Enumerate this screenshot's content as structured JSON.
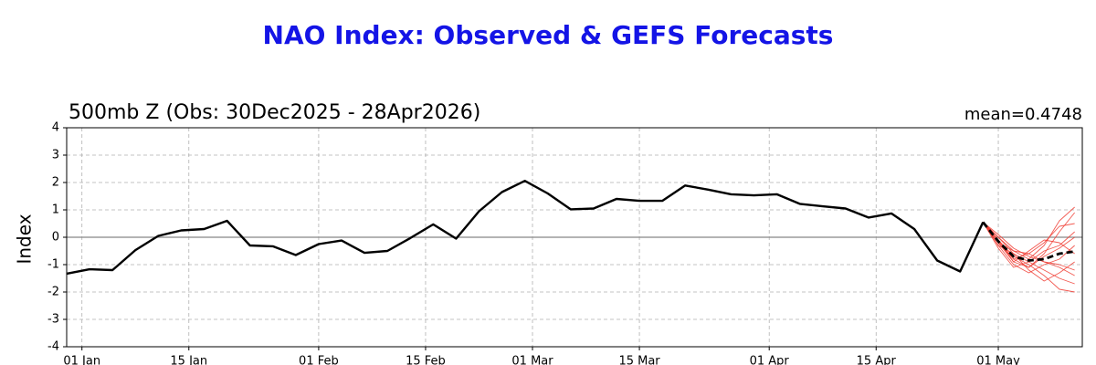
{
  "chart_data": {
    "type": "line",
    "title": "NAO Index: Observed & GEFS Forecasts",
    "subtitle": "500mb Z (Obs: 30Dec2025 - 28Apr2026)",
    "annotation": "mean=0.4748",
    "y_label": "Index",
    "xlim": [
      "30 Dec",
      "12 May"
    ],
    "xticks": [
      "01 Jan",
      "15 Jan",
      "01 Feb",
      "15 Feb",
      "01 Mar",
      "15 Mar",
      "01 Apr",
      "15 Apr",
      "01 May"
    ],
    "ylim": [
      -4,
      4
    ],
    "yticks": [
      -4,
      -3,
      -2,
      -1,
      0,
      1,
      2,
      3,
      4
    ],
    "grid": true,
    "zero_line": true,
    "series": [
      {
        "color": "#f03c32",
        "x": [
          "29 Apr",
          "01 May",
          "03 May",
          "05 May",
          "07 May",
          "09 May",
          "11 May"
        ],
        "values": [
          0.55,
          0.0,
          -0.6,
          -0.9,
          -1.2,
          -1.5,
          -1.7
        ]
      },
      {
        "color": "#f03c32",
        "x": [
          "29 Apr",
          "01 May",
          "03 May",
          "05 May",
          "07 May",
          "09 May",
          "11 May"
        ],
        "values": [
          0.55,
          -0.1,
          -0.8,
          -1.1,
          -0.6,
          0.2,
          0.9
        ]
      },
      {
        "color": "#f03c32",
        "x": [
          "29 Apr",
          "01 May",
          "03 May",
          "05 May",
          "07 May",
          "09 May",
          "11 May"
        ],
        "values": [
          0.55,
          -0.3,
          -1.0,
          -1.3,
          -1.0,
          -0.8,
          -0.3
        ]
      },
      {
        "color": "#f03c32",
        "x": [
          "29 Apr",
          "01 May",
          "03 May",
          "05 May",
          "07 May",
          "09 May",
          "11 May"
        ],
        "values": [
          0.55,
          -0.2,
          -0.5,
          -0.6,
          -0.2,
          0.4,
          0.5
        ]
      },
      {
        "color": "#f03c32",
        "x": [
          "29 Apr",
          "01 May",
          "03 May",
          "05 May",
          "07 May",
          "09 May",
          "11 May"
        ],
        "values": [
          0.55,
          -0.1,
          -0.7,
          -1.0,
          -1.4,
          -1.9,
          -2.0
        ]
      },
      {
        "color": "#f03c32",
        "x": [
          "29 Apr",
          "01 May",
          "03 May",
          "05 May",
          "07 May",
          "09 May",
          "11 May"
        ],
        "values": [
          0.55,
          -0.4,
          -1.1,
          -0.9,
          -0.5,
          -0.3,
          0.2
        ]
      },
      {
        "color": "#f03c32",
        "x": [
          "29 Apr",
          "01 May",
          "03 May",
          "05 May",
          "07 May",
          "09 May",
          "11 May"
        ],
        "values": [
          0.55,
          0.1,
          -0.4,
          -0.7,
          -0.9,
          -1.0,
          -1.2
        ]
      },
      {
        "color": "#f03c32",
        "x": [
          "29 Apr",
          "01 May",
          "03 May",
          "05 May",
          "07 May",
          "09 May",
          "11 May"
        ],
        "values": [
          0.55,
          -0.2,
          -0.9,
          -0.5,
          -0.1,
          -0.2,
          -0.6
        ]
      },
      {
        "color": "#f03c32",
        "x": [
          "29 Apr",
          "01 May",
          "03 May",
          "05 May",
          "07 May",
          "09 May",
          "11 May"
        ],
        "values": [
          0.55,
          -0.3,
          -0.6,
          -1.2,
          -1.6,
          -1.3,
          -0.9
        ]
      },
      {
        "color": "#f03c32",
        "x": [
          "29 Apr",
          "01 May",
          "03 May",
          "05 May",
          "07 May",
          "09 May",
          "11 May"
        ],
        "values": [
          0.55,
          0.0,
          -0.5,
          -0.8,
          -0.3,
          0.6,
          1.1
        ]
      },
      {
        "color": "#f03c32",
        "x": [
          "29 Apr",
          "01 May",
          "03 May",
          "05 May",
          "07 May",
          "09 May",
          "11 May"
        ],
        "values": [
          0.55,
          -0.2,
          -0.8,
          -0.6,
          -0.9,
          -1.1,
          -1.4
        ]
      },
      {
        "color": "#f03c32",
        "x": [
          "29 Apr",
          "01 May",
          "03 May",
          "05 May",
          "07 May",
          "09 May",
          "11 May"
        ],
        "values": [
          0.55,
          -0.1,
          -0.9,
          -1.1,
          -0.7,
          -0.4,
          0.0
        ]
      },
      {
        "color": "#000000",
        "x": [
          "30 Dec",
          "02 Jan",
          "05 Jan",
          "08 Jan",
          "11 Jan",
          "14 Jan",
          "17 Jan",
          "20 Jan",
          "23 Jan",
          "26 Jan",
          "29 Jan",
          "01 Feb",
          "04 Feb",
          "07 Feb",
          "10 Feb",
          "13 Feb",
          "16 Feb",
          "19 Feb",
          "22 Feb",
          "25 Feb",
          "28 Feb",
          "03 Mar",
          "06 Mar",
          "09 Mar",
          "12 Mar",
          "15 Mar",
          "18 Mar",
          "21 Mar",
          "24 Mar",
          "27 Mar",
          "30 Mar",
          "02 Apr",
          "05 Apr",
          "08 Apr",
          "11 Apr",
          "14 Apr",
          "17 Apr",
          "20 Apr",
          "23 Apr",
          "26 Apr",
          "29 Apr"
        ],
        "values": [
          -1.33,
          -1.17,
          -1.2,
          -0.47,
          0.05,
          0.25,
          0.3,
          0.6,
          -0.3,
          -0.33,
          -0.65,
          -0.25,
          -0.12,
          -0.57,
          -0.5,
          -0.03,
          0.47,
          -0.05,
          0.95,
          1.65,
          2.06,
          1.6,
          1.02,
          1.05,
          1.4,
          1.33,
          1.33,
          1.89,
          1.74,
          1.57,
          1.53,
          1.57,
          1.22,
          1.13,
          1.05,
          0.72,
          0.87,
          0.3,
          -0.85,
          -1.25,
          0.55
        ]
      },
      {
        "color": "#000000",
        "style": "dashed",
        "x": [
          "29 Apr",
          "01 May",
          "03 May",
          "05 May",
          "07 May",
          "09 May",
          "11 May"
        ],
        "values": [
          0.55,
          -0.15,
          -0.7,
          -0.85,
          -0.8,
          -0.6,
          -0.52
        ]
      }
    ]
  }
}
